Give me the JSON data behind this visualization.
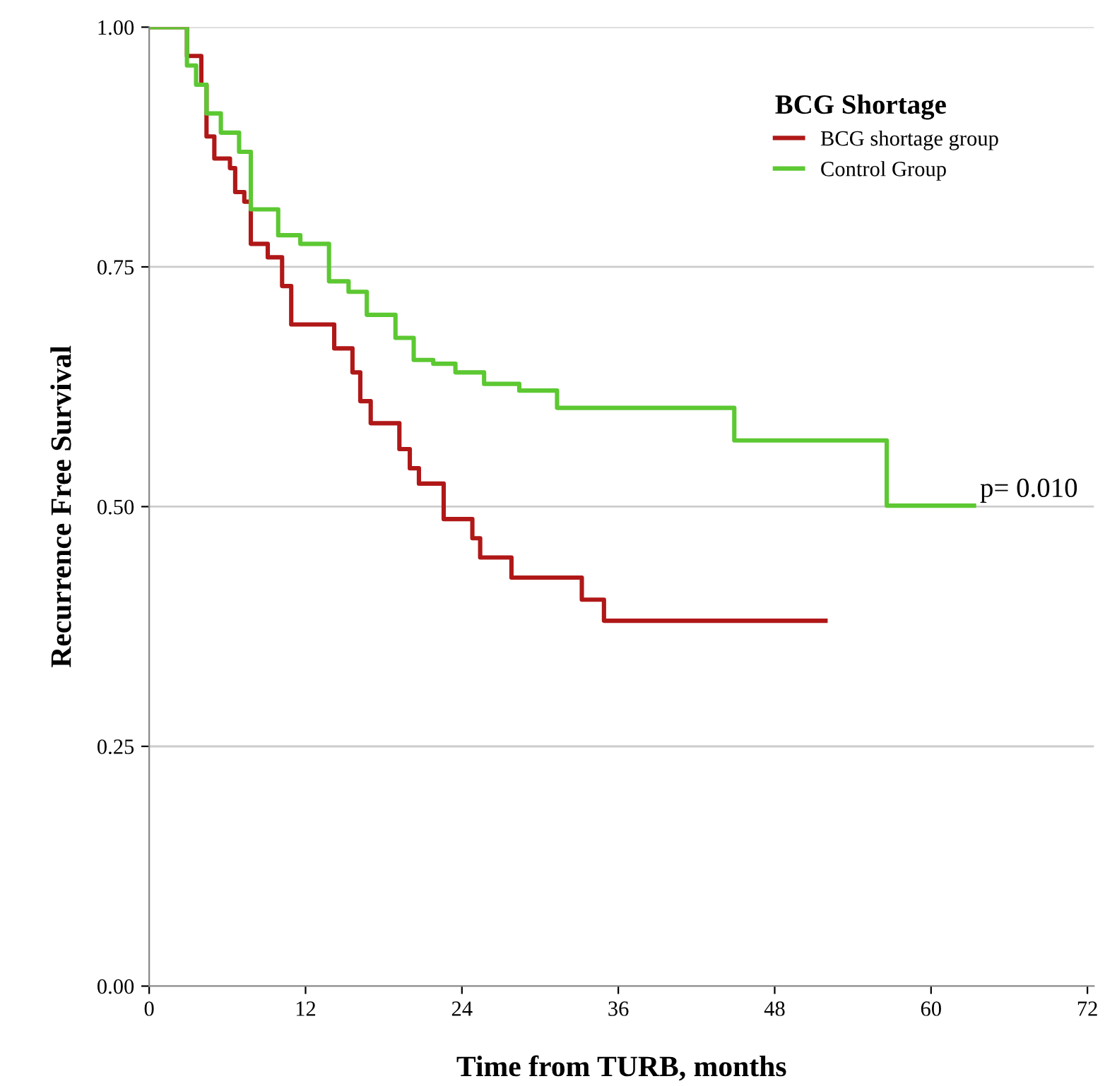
{
  "chart_data": {
    "type": "step",
    "xlabel": "Time from TURB, months",
    "ylabel": "Recurrence Free Survival",
    "legend_title": "BCG Shortage",
    "legend": "top right",
    "grid": "y",
    "marker": "none",
    "line_style": "solid",
    "xlim": [
      0,
      72.5
    ],
    "xticks": [
      0,
      12,
      24,
      36,
      48,
      60,
      72
    ],
    "ylim": [
      0,
      1
    ],
    "yticks": [
      {
        "value": 0,
        "label": "0.00"
      },
      {
        "value": 0.25,
        "label": "0.25"
      },
      {
        "value": 0.5,
        "label": "0.50"
      },
      {
        "value": 0.75,
        "label": "0.75"
      },
      {
        "value": 1,
        "label": "1.00"
      }
    ],
    "annotations": [
      {
        "text": "p= 0.010",
        "x": 63.3,
        "y": 0.5
      }
    ],
    "series": [
      {
        "name": "BCG shortage group",
        "color": "#b01818",
        "x": [
          0,
          2.9,
          4.0,
          4.4,
          5.0,
          6.2,
          6.6,
          7.3,
          7.8,
          9.1,
          10.2,
          10.9,
          14.2,
          15.6,
          16.2,
          17.0,
          19.2,
          20.0,
          20.7,
          22.6,
          24.8,
          25.4,
          27.8,
          33.2,
          34.9,
          51.9
        ],
        "values": [
          1.0,
          0.97,
          0.94,
          0.886,
          0.863,
          0.853,
          0.828,
          0.818,
          0.774,
          0.76,
          0.73,
          0.69,
          0.665,
          0.64,
          0.61,
          0.587,
          0.56,
          0.54,
          0.524,
          0.487,
          0.467,
          0.447,
          0.426,
          0.403,
          0.381,
          0.381
        ]
      },
      {
        "name": "Control Group",
        "color": "#5cc832",
        "x": [
          0,
          2.9,
          3.6,
          4.4,
          5.5,
          6.9,
          7.8,
          9.9,
          11.6,
          13.8,
          15.3,
          16.7,
          18.9,
          20.3,
          21.8,
          23.5,
          25.7,
          28.4,
          31.3,
          44.9,
          56.6,
          63.3
        ],
        "values": [
          1.0,
          0.96,
          0.94,
          0.91,
          0.89,
          0.87,
          0.81,
          0.783,
          0.774,
          0.735,
          0.724,
          0.7,
          0.676,
          0.653,
          0.649,
          0.64,
          0.628,
          0.621,
          0.603,
          0.569,
          0.501,
          0.501
        ]
      }
    ]
  }
}
